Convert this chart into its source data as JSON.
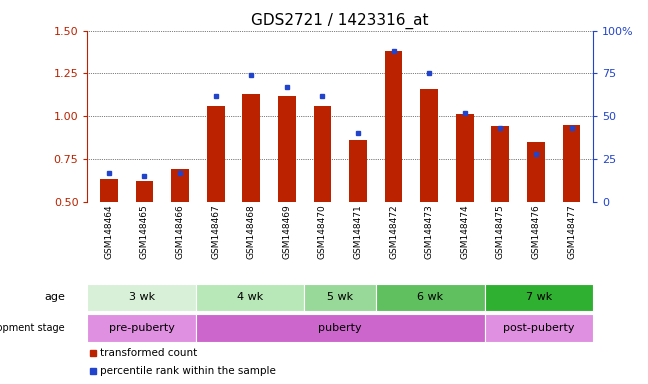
{
  "title": "GDS2721 / 1423316_at",
  "samples": [
    "GSM148464",
    "GSM148465",
    "GSM148466",
    "GSM148467",
    "GSM148468",
    "GSM148469",
    "GSM148470",
    "GSM148471",
    "GSM148472",
    "GSM148473",
    "GSM148474",
    "GSM148475",
    "GSM148476",
    "GSM148477"
  ],
  "transformed_count": [
    0.63,
    0.62,
    0.69,
    1.06,
    1.13,
    1.12,
    1.06,
    0.86,
    1.38,
    1.16,
    1.01,
    0.94,
    0.85,
    0.95
  ],
  "percentile_rank": [
    17,
    15,
    17,
    62,
    74,
    67,
    62,
    40,
    88,
    75,
    52,
    43,
    28,
    43
  ],
  "ylim_left": [
    0.5,
    1.5
  ],
  "ylim_right": [
    0,
    100
  ],
  "yticks_left": [
    0.5,
    0.75,
    1.0,
    1.25,
    1.5
  ],
  "yticks_right": [
    0,
    25,
    50,
    75,
    100
  ],
  "bar_color": "#bb2200",
  "dot_color": "#2244cc",
  "bar_bottom": 0.5,
  "age_groups": [
    {
      "label": "3 wk",
      "start": 0,
      "end": 2,
      "color": "#d8f0d8"
    },
    {
      "label": "4 wk",
      "start": 3,
      "end": 5,
      "color": "#b8e8b8"
    },
    {
      "label": "5 wk",
      "start": 6,
      "end": 7,
      "color": "#98d898"
    },
    {
      "label": "6 wk",
      "start": 8,
      "end": 10,
      "color": "#60c060"
    },
    {
      "label": "7 wk",
      "start": 11,
      "end": 13,
      "color": "#30b030"
    }
  ],
  "dev_stage_groups": [
    {
      "label": "pre-puberty",
      "start": 0,
      "end": 2,
      "color": "#e090e0"
    },
    {
      "label": "puberty",
      "start": 3,
      "end": 10,
      "color": "#cc66cc"
    },
    {
      "label": "post-puberty",
      "start": 11,
      "end": 13,
      "color": "#e090e0"
    }
  ],
  "xlabel_bg_color": "#cccccc",
  "grid_color": "#000000",
  "background_color": "#ffffff",
  "tick_label_color_left": "#bb2200",
  "tick_label_color_right": "#2244cc",
  "title_fontsize": 11,
  "axis_fontsize": 8,
  "sample_fontsize": 6.5,
  "group_fontsize": 8
}
